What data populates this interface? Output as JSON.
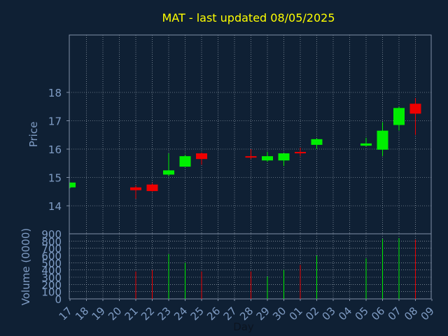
{
  "chart_data": {
    "type": "candlestick",
    "title": "MAT - last updated 08/05/2025",
    "xlabel": "Day",
    "price_panel": {
      "ylabel": "Price",
      "yticks": [
        14,
        15,
        16,
        17,
        18
      ],
      "ylim": [
        13.0,
        21.0
      ]
    },
    "volume_panel": {
      "ylabel": "Volume (0000)",
      "yticks": [
        0,
        100,
        200,
        300,
        400,
        500,
        600,
        700,
        800,
        900
      ],
      "ylim": [
        0,
        900
      ]
    },
    "x_tick_labels": [
      "17",
      "18",
      "19",
      "20",
      "21",
      "22",
      "23",
      "24",
      "25",
      "26",
      "27",
      "28",
      "29",
      "30",
      "01",
      "02",
      "03",
      "04",
      "05",
      "06",
      "07",
      "08",
      "09"
    ],
    "grid": true,
    "colors": {
      "background": "#0f2034",
      "axis": "#8090a8",
      "tick_text": "#7f9cc4",
      "title": "#ffff00",
      "grid": "#b0bcc8",
      "up": "#00ee00",
      "down": "#ee0000"
    },
    "candles": [
      {
        "day": "17",
        "open": 14.65,
        "high": 14.82,
        "low": 14.62,
        "close": 14.82,
        "volume": 0
      },
      {
        "day": "21",
        "open": 14.65,
        "high": 14.72,
        "low": 14.25,
        "close": 14.55,
        "volume": 380
      },
      {
        "day": "22",
        "open": 14.75,
        "high": 14.8,
        "low": 14.5,
        "close": 14.52,
        "volume": 400
      },
      {
        "day": "23",
        "open": 15.1,
        "high": 15.85,
        "low": 15.05,
        "close": 15.25,
        "volume": 620
      },
      {
        "day": "24",
        "open": 15.38,
        "high": 15.8,
        "low": 15.38,
        "close": 15.75,
        "volume": 500
      },
      {
        "day": "25",
        "open": 15.85,
        "high": 15.88,
        "low": 15.45,
        "close": 15.65,
        "volume": 380
      },
      {
        "day": "28",
        "open": 15.75,
        "high": 16.0,
        "low": 15.65,
        "close": 15.7,
        "volume": 380
      },
      {
        "day": "29",
        "open": 15.6,
        "high": 15.9,
        "low": 15.55,
        "close": 15.75,
        "volume": 310
      },
      {
        "day": "30",
        "open": 15.6,
        "high": 15.85,
        "low": 15.4,
        "close": 15.85,
        "volume": 400
      },
      {
        "day": "01",
        "open": 15.9,
        "high": 16.05,
        "low": 15.75,
        "close": 15.87,
        "volume": 470
      },
      {
        "day": "02",
        "open": 16.15,
        "high": 16.38,
        "low": 16.0,
        "close": 16.35,
        "volume": 600
      },
      {
        "day": "05",
        "open": 16.12,
        "high": 16.4,
        "low": 16.1,
        "close": 16.2,
        "volume": 560
      },
      {
        "day": "06",
        "open": 15.98,
        "high": 16.95,
        "low": 15.75,
        "close": 16.65,
        "volume": 830
      },
      {
        "day": "07",
        "open": 16.85,
        "high": 17.5,
        "low": 16.65,
        "close": 17.45,
        "volume": 840
      },
      {
        "day": "08",
        "open": 17.6,
        "high": 17.8,
        "low": 16.5,
        "close": 17.25,
        "volume": 820
      }
    ]
  }
}
